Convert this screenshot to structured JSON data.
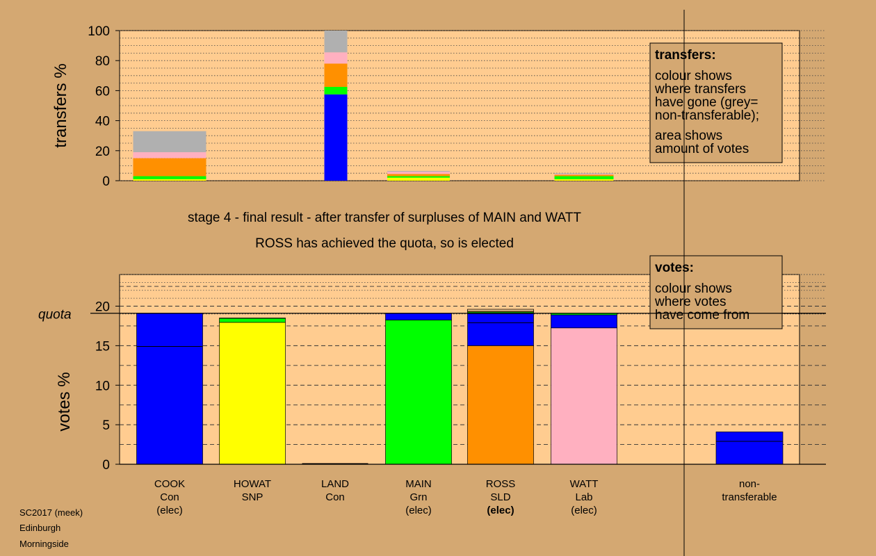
{
  "chart_data": [
    {
      "type": "bar",
      "stacked": true,
      "ylabel": "transfers %",
      "ylim": [
        0,
        100
      ],
      "yticks": [
        "0",
        "20",
        "40",
        "60",
        "80",
        "100"
      ],
      "grid": true,
      "x": [
        "COOK",
        "LAND",
        "MAIN",
        "WATT"
      ],
      "series": [
        {
          "color": "#0000ff",
          "values": [
            0,
            57.5,
            0,
            0
          ]
        },
        {
          "color": "#ffff00",
          "values": [
            1,
            0,
            2,
            1
          ]
        },
        {
          "color": "#00ff00",
          "values": [
            2,
            5,
            1,
            2
          ]
        },
        {
          "color": "#ff9000",
          "values": [
            12,
            15.5,
            1.5,
            1
          ]
        },
        {
          "color": "#ffb0c0",
          "values": [
            4,
            7.5,
            1.5,
            0.5
          ]
        },
        {
          "color": "#b0b0b0",
          "values": [
            14,
            14.5,
            0.5,
            0.5
          ]
        }
      ],
      "legend_box": {
        "title": "transfers:",
        "lines": [
          "colour shows",
          "where transfers",
          "have gone (grey=",
          "non-transferable);",
          "area shows",
          "amount of votes"
        ]
      }
    },
    {
      "type": "bar",
      "stacked": true,
      "ylabel": "votes %",
      "ylim": [
        0,
        24
      ],
      "yticks": [
        "0",
        "5",
        "10",
        "15",
        "20"
      ],
      "quota": 19.1,
      "quota_label": "quota",
      "grid": true,
      "candidates": [
        {
          "name": "COOK",
          "party": "Con",
          "status": "(elec)",
          "bold": false,
          "segments": [
            {
              "color": "#0000ff",
              "value": 19.1
            }
          ],
          "inner_line": 14.9,
          "outline": 0
        },
        {
          "name": "HOWAT",
          "party": "SNP",
          "status": "",
          "bold": false,
          "segments": [
            {
              "color": "#ffff00",
              "value": 17.95
            },
            {
              "color": "#00ff00",
              "value": 0.5
            },
            {
              "color": "#0000ff",
              "value": 0.05
            }
          ],
          "inner_line": 0,
          "outline": 0
        },
        {
          "name": "LAND",
          "party": "Con",
          "status": "",
          "bold": false,
          "segments": [],
          "inner_line": 0,
          "outline": 0
        },
        {
          "name": "MAIN",
          "party": "Grn",
          "status": "(elec)",
          "bold": false,
          "segments": [
            {
              "color": "#00ff00",
              "value": 18.25
            },
            {
              "color": "#0000ff",
              "value": 0.85
            }
          ],
          "inner_line": 0,
          "outline": 0
        },
        {
          "name": "ROSS",
          "party": "SLD",
          "status": "(elec)",
          "bold": true,
          "segments": [
            {
              "color": "#ff9000",
              "value": 15.0
            },
            {
              "color": "#0000ff",
              "value": 4.05
            },
            {
              "color": "#00ff00",
              "value": 0.2
            },
            {
              "color": "#ffff00",
              "value": 0.1
            }
          ],
          "inner_line": 17.9,
          "outline": 19.6
        },
        {
          "name": "WATT",
          "party": "Lab",
          "status": "(elec)",
          "bold": false,
          "segments": [
            {
              "color": "#ffb0c0",
              "value": 17.25
            },
            {
              "color": "#0000ff",
              "value": 1.65
            },
            {
              "color": "#00ff00",
              "value": 0.2
            }
          ],
          "inner_line": 0,
          "outline": 0
        }
      ],
      "non_transferable": {
        "label_1": "non-",
        "label_2": "transferable",
        "value": 4.1,
        "color": "#0000ff",
        "inner_line": 2.9
      },
      "legend_box": {
        "title": "votes:",
        "lines": [
          "colour shows",
          "where votes",
          "have come from"
        ]
      }
    }
  ],
  "captions": {
    "stage": "stage 4 - final result - after transfer of surpluses of MAIN and WATT",
    "result": "ROSS has achieved the quota, so is elected"
  },
  "footer": [
    "SC2017 (meek)",
    "Edinburgh",
    "Morningside"
  ]
}
